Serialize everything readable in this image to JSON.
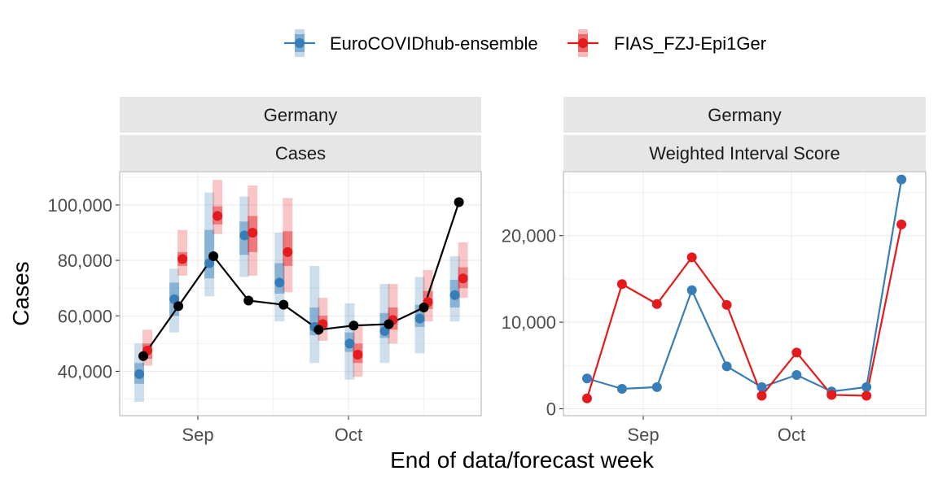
{
  "legend": {
    "items": [
      {
        "label": "EuroCOVIDhub-ensemble",
        "color": "#377EB8"
      },
      {
        "label": "FIAS_FZJ-Epi1Ger",
        "color": "#E41A1C"
      }
    ]
  },
  "xlabel": "End of data/forecast week",
  "chart_data": [
    {
      "type": "line",
      "panel": "forecasts",
      "strip_top": "Germany",
      "strip_bottom": "Cases",
      "ylabel": "Cases",
      "x_tick_labels": [
        "Sep",
        "Oct"
      ],
      "y_tick_labels": [
        "40,000",
        "60,000",
        "80,000",
        "100,000"
      ],
      "y_ticks": [
        40000,
        60000,
        80000,
        100000
      ],
      "ylim": [
        24000,
        112000
      ],
      "x_weeks": [
        0,
        1,
        2,
        3,
        4,
        5,
        6,
        7,
        8,
        9
      ],
      "observed": {
        "color": "#000000",
        "values": [
          45500,
          63500,
          81500,
          65500,
          64000,
          55000,
          56500,
          57000,
          63000,
          101000
        ]
      },
      "series": [
        {
          "name": "EuroCOVIDhub-ensemble",
          "color": "#377EB8",
          "weeks": [
            0,
            1,
            2,
            3,
            4,
            5,
            6,
            7,
            8,
            9
          ],
          "median": [
            39000,
            66000,
            79000,
            89000,
            72000,
            56000,
            50000,
            54500,
            59000,
            67500
          ],
          "lower50": [
            35500,
            60000,
            73500,
            82000,
            68000,
            53000,
            47000,
            52000,
            56000,
            63000
          ],
          "upper50": [
            43000,
            72000,
            91000,
            94000,
            79000,
            63000,
            54000,
            61000,
            64000,
            73000
          ],
          "lower90": [
            29000,
            54000,
            67000,
            74000,
            58000,
            43000,
            37000,
            43000,
            46500,
            58000
          ],
          "upper90": [
            50000,
            77000,
            104500,
            103000,
            90000,
            78000,
            64500,
            71500,
            74000,
            81500
          ]
        },
        {
          "name": "FIAS_FZJ-Epi1Ger",
          "color": "#E41A1C",
          "weeks": [
            0,
            1,
            2,
            3,
            4,
            5,
            6,
            7,
            8,
            9
          ],
          "median": [
            47500,
            80500,
            96000,
            90000,
            83000,
            57000,
            46000,
            58500,
            65000,
            73500
          ],
          "lower50": [
            44500,
            78000,
            93000,
            83000,
            78000,
            55000,
            43000,
            55000,
            62500,
            70000
          ],
          "upper50": [
            50000,
            83000,
            99500,
            96000,
            90500,
            60000,
            50000,
            63000,
            69000,
            77500
          ],
          "lower90": [
            42000,
            74500,
            89500,
            74500,
            68500,
            51000,
            38000,
            50000,
            58000,
            66500
          ],
          "upper90": [
            55000,
            91000,
            109000,
            107000,
            102500,
            66500,
            57000,
            71500,
            76500,
            86500
          ]
        }
      ]
    },
    {
      "type": "line",
      "panel": "scores",
      "strip_top": "Germany",
      "strip_bottom": "Weighted Interval Score",
      "x_tick_labels": [
        "Sep",
        "Oct"
      ],
      "y_tick_labels": [
        "0",
        "10,000",
        "20,000"
      ],
      "y_ticks": [
        0,
        10000,
        20000
      ],
      "ylim": [
        -800,
        27400
      ],
      "x_weeks": [
        0,
        1,
        2,
        3,
        4,
        5,
        6,
        7,
        8,
        9
      ],
      "series": [
        {
          "name": "EuroCOVIDhub-ensemble",
          "color": "#377EB8",
          "values": [
            3500,
            2300,
            2500,
            13700,
            4900,
            2500,
            3900,
            2000,
            2500,
            26500
          ]
        },
        {
          "name": "FIAS_FZJ-Epi1Ger",
          "color": "#E41A1C",
          "values": [
            1200,
            14400,
            12100,
            17500,
            12000,
            1500,
            6500,
            1600,
            1500,
            21300
          ]
        }
      ]
    }
  ]
}
